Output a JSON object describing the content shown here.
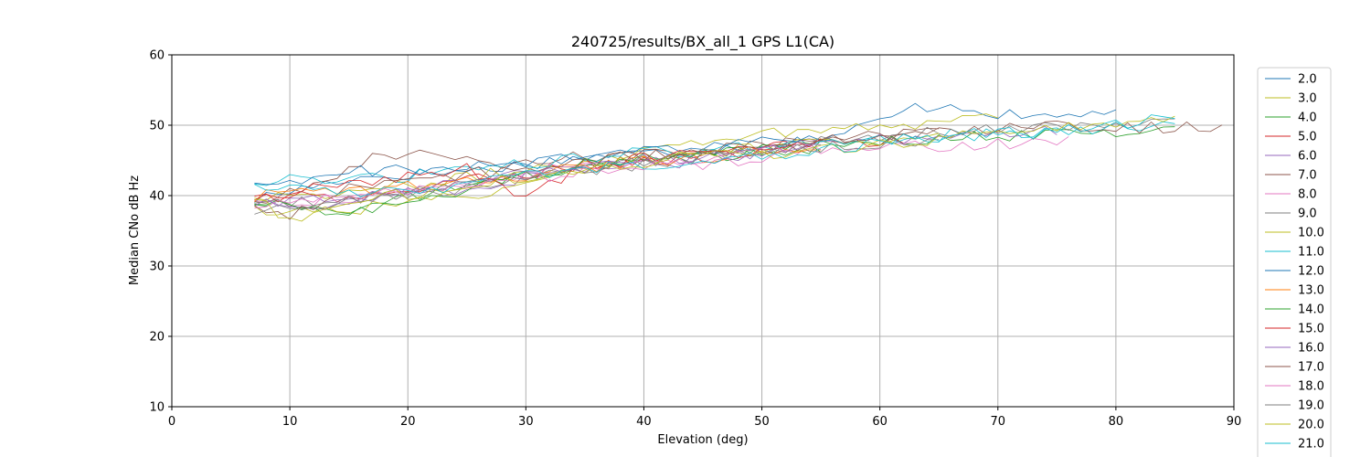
{
  "chart_data": {
    "type": "line",
    "title": "240725/results/BX_all_1 GPS L1(CA)",
    "xlabel": "Elevation (deg)",
    "ylabel": "Median CNo dB Hz",
    "xlim": [
      0,
      90
    ],
    "ylim": [
      10,
      60
    ],
    "xticks": [
      "0",
      "10",
      "20",
      "30",
      "40",
      "50",
      "60",
      "70",
      "80",
      "90"
    ],
    "yticks": [
      "10",
      "20",
      "30",
      "40",
      "50",
      "60"
    ],
    "grid": true,
    "legend_position": "right-outside",
    "series": [
      {
        "name": "2.0",
        "color": "#1f77b4",
        "x": [
          7,
          15,
          25,
          35,
          45,
          55,
          60,
          63,
          66,
          72,
          80
        ],
        "y": [
          39.5,
          42.5,
          43.5,
          45.5,
          46.5,
          48,
          50.5,
          52.5,
          53,
          51,
          52
        ]
      },
      {
        "name": "3.0",
        "color": "#bcbd22",
        "x": [
          7,
          15,
          25,
          35,
          45,
          55,
          65,
          70
        ],
        "y": [
          40,
          40.5,
          42.5,
          45,
          48,
          49.5,
          50.5,
          51.5
        ]
      },
      {
        "name": "4.0",
        "color": "#2ca02c",
        "x": [
          7,
          15,
          25,
          35,
          45,
          55,
          65,
          75,
          85
        ],
        "y": [
          39,
          38,
          41.5,
          44,
          45.5,
          47,
          48,
          49,
          49.5
        ]
      },
      {
        "name": "5.0",
        "color": "#d62728",
        "x": [
          7,
          15,
          25,
          35,
          45,
          55,
          62
        ],
        "y": [
          40,
          39.5,
          42,
          44.5,
          45.5,
          47.5,
          48
        ]
      },
      {
        "name": "6.0",
        "color": "#9467bd",
        "x": [
          7,
          15,
          25,
          35,
          45,
          55,
          65,
          75
        ],
        "y": [
          38.5,
          40,
          41,
          44,
          45,
          47.5,
          48.5,
          49.5
        ]
      },
      {
        "name": "7.0",
        "color": "#8c564b",
        "x": [
          7,
          12,
          17,
          21,
          27,
          35,
          45,
          55,
          65
        ],
        "y": [
          39,
          41,
          45.5,
          46.5,
          44,
          45.5,
          46.5,
          48,
          49
        ]
      },
      {
        "name": "8.0",
        "color": "#e377c2",
        "x": [
          7,
          15,
          25,
          35,
          45,
          55,
          65,
          76
        ],
        "y": [
          39,
          39.5,
          41.5,
          44.5,
          44.5,
          46.5,
          47,
          47.5
        ]
      },
      {
        "name": "9.0",
        "color": "#7f7f7f",
        "x": [
          7,
          15,
          25,
          35,
          45,
          55,
          65,
          75,
          85
        ],
        "y": [
          38.5,
          39.5,
          41,
          43.5,
          45.5,
          47.5,
          49,
          50,
          50.5
        ]
      },
      {
        "name": "10.0",
        "color": "#bcbd22",
        "x": [
          7,
          15,
          25,
          35,
          45,
          55,
          65
        ],
        "y": [
          38,
          38,
          40,
          44,
          46,
          47.5,
          48.5
        ]
      },
      {
        "name": "11.0",
        "color": "#17becf",
        "x": [
          7,
          10,
          15,
          25,
          35,
          45,
          55,
          65,
          75,
          85
        ],
        "y": [
          41,
          43,
          42,
          43.5,
          45.5,
          46.5,
          47.5,
          48.5,
          49,
          50.5
        ]
      },
      {
        "name": "12.0",
        "color": "#1f77b4",
        "x": [
          7,
          15,
          25,
          35,
          45,
          55
        ],
        "y": [
          41,
          43.5,
          44,
          45.5,
          47,
          48
        ]
      },
      {
        "name": "13.0",
        "color": "#ff7f0e",
        "x": [
          7,
          15,
          25,
          35,
          45,
          55
        ],
        "y": [
          40,
          40.5,
          42,
          44,
          45.5,
          47
        ]
      },
      {
        "name": "14.0",
        "color": "#2ca02c",
        "x": [
          7,
          10,
          15,
          25,
          35,
          45,
          55
        ],
        "y": [
          39.5,
          38,
          37.5,
          41,
          44.5,
          46,
          47
        ]
      },
      {
        "name": "15.0",
        "color": "#d62728",
        "x": [
          7,
          15,
          25,
          30,
          35,
          45,
          55
        ],
        "y": [
          40,
          41.5,
          44,
          39.5,
          44.5,
          46,
          47.5
        ]
      },
      {
        "name": "16.0",
        "color": "#9467bd",
        "x": [
          7,
          15,
          25,
          35,
          45,
          55
        ],
        "y": [
          39,
          39,
          42,
          44.5,
          45.5,
          47
        ]
      },
      {
        "name": "17.0",
        "color": "#8c564b",
        "x": [
          7,
          10,
          15,
          25,
          35,
          45,
          55,
          65,
          75,
          89
        ],
        "y": [
          39,
          37,
          41,
          43,
          45,
          46.5,
          48,
          49,
          50,
          49.5
        ]
      },
      {
        "name": "18.0",
        "color": "#e377c2",
        "x": [
          7,
          15,
          25,
          35,
          45,
          55
        ],
        "y": [
          38.5,
          40,
          41.5,
          43.5,
          45.5,
          47
        ]
      },
      {
        "name": "19.0",
        "color": "#7f7f7f",
        "x": [
          7,
          15,
          25,
          35,
          45,
          55,
          65
        ],
        "y": [
          37.5,
          39,
          41.5,
          44,
          46,
          47,
          48
        ]
      },
      {
        "name": "20.0",
        "color": "#bcbd22",
        "x": [
          7,
          10,
          15,
          25,
          35,
          45,
          55,
          65,
          75,
          85
        ],
        "y": [
          39.5,
          36.5,
          39,
          41.5,
          44,
          45.5,
          46.5,
          48,
          49.5,
          51
        ]
      },
      {
        "name": "21.0",
        "color": "#17becf",
        "x": [
          7,
          15,
          25,
          35,
          45,
          55,
          65,
          75,
          85
        ],
        "y": [
          41.5,
          40,
          41.5,
          44,
          45,
          46.5,
          48.5,
          49,
          51
        ]
      }
    ]
  }
}
